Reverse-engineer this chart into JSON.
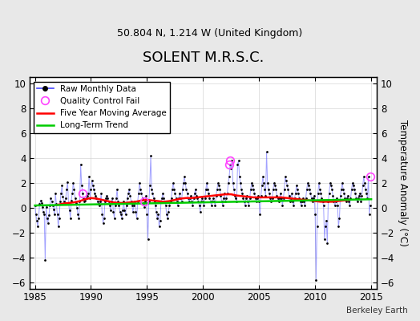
{
  "title": "SOLENT M.R.S.C.",
  "subtitle": "50.804 N, 1.214 W (United Kingdom)",
  "ylabel": "Temperature Anomaly (°C)",
  "attribution": "Berkeley Earth",
  "bg_color": "#e8e8e8",
  "plot_bg_color": "#ffffff",
  "ylim": [
    -6.5,
    10.5
  ],
  "xlim": [
    1984.5,
    2015.5
  ],
  "yticks": [
    -6,
    -4,
    -2,
    0,
    2,
    4,
    6,
    8,
    10
  ],
  "xticks": [
    1985,
    1990,
    1995,
    2000,
    2005,
    2010,
    2015
  ],
  "line_color": "#4444ff",
  "dot_color": "#000000",
  "moving_avg_color": "#ff0000",
  "trend_color": "#00cc00",
  "qc_fail_color": "#ff44ff",
  "line_alpha": 0.5,
  "raw_data": {
    "years": [
      1985,
      1985.083,
      1985.167,
      1985.25,
      1985.333,
      1985.417,
      1985.5,
      1985.583,
      1985.667,
      1985.75,
      1985.833,
      1985.917,
      1986,
      1986.083,
      1986.167,
      1986.25,
      1986.333,
      1986.417,
      1986.5,
      1986.583,
      1986.667,
      1986.75,
      1986.833,
      1986.917,
      1987,
      1987.083,
      1987.167,
      1987.25,
      1987.333,
      1987.417,
      1987.5,
      1987.583,
      1987.667,
      1987.75,
      1987.833,
      1987.917,
      1988,
      1988.083,
      1988.167,
      1988.25,
      1988.333,
      1988.417,
      1988.5,
      1988.583,
      1988.667,
      1988.75,
      1988.833,
      1988.917,
      1989,
      1989.083,
      1989.167,
      1989.25,
      1989.333,
      1989.417,
      1989.5,
      1989.583,
      1989.667,
      1989.75,
      1989.833,
      1989.917,
      1990,
      1990.083,
      1990.167,
      1990.25,
      1990.333,
      1990.417,
      1990.5,
      1990.583,
      1990.667,
      1990.75,
      1990.833,
      1990.917,
      1991,
      1991.083,
      1991.167,
      1991.25,
      1991.333,
      1991.417,
      1991.5,
      1991.583,
      1991.667,
      1991.75,
      1991.833,
      1991.917,
      1992,
      1992.083,
      1992.167,
      1992.25,
      1992.333,
      1992.417,
      1992.5,
      1992.583,
      1992.667,
      1992.75,
      1992.833,
      1992.917,
      1993,
      1993.083,
      1993.167,
      1993.25,
      1993.333,
      1993.417,
      1993.5,
      1993.583,
      1993.667,
      1993.75,
      1993.833,
      1993.917,
      1994,
      1994.083,
      1994.167,
      1994.25,
      1994.333,
      1994.417,
      1994.5,
      1994.583,
      1994.667,
      1994.75,
      1994.833,
      1994.917,
      1995,
      1995.083,
      1995.167,
      1995.25,
      1995.333,
      1995.417,
      1995.5,
      1995.583,
      1995.667,
      1995.75,
      1995.833,
      1995.917,
      1996,
      1996.083,
      1996.167,
      1996.25,
      1996.333,
      1996.417,
      1996.5,
      1996.583,
      1996.667,
      1996.75,
      1996.833,
      1996.917,
      1997,
      1997.083,
      1997.167,
      1997.25,
      1997.333,
      1997.417,
      1997.5,
      1997.583,
      1997.667,
      1997.75,
      1997.833,
      1997.917,
      1998,
      1998.083,
      1998.167,
      1998.25,
      1998.333,
      1998.417,
      1998.5,
      1998.583,
      1998.667,
      1998.75,
      1998.833,
      1998.917,
      1999,
      1999.083,
      1999.167,
      1999.25,
      1999.333,
      1999.417,
      1999.5,
      1999.583,
      1999.667,
      1999.75,
      1999.833,
      1999.917,
      2000,
      2000.083,
      2000.167,
      2000.25,
      2000.333,
      2000.417,
      2000.5,
      2000.583,
      2000.667,
      2000.75,
      2000.833,
      2000.917,
      2001,
      2001.083,
      2001.167,
      2001.25,
      2001.333,
      2001.417,
      2001.5,
      2001.583,
      2001.667,
      2001.75,
      2001.833,
      2001.917,
      2002,
      2002.083,
      2002.167,
      2002.25,
      2002.333,
      2002.417,
      2002.5,
      2002.583,
      2002.667,
      2002.75,
      2002.833,
      2002.917,
      2003,
      2003.083,
      2003.167,
      2003.25,
      2003.333,
      2003.417,
      2003.5,
      2003.583,
      2003.667,
      2003.75,
      2003.833,
      2003.917,
      2004,
      2004.083,
      2004.167,
      2004.25,
      2004.333,
      2004.417,
      2004.5,
      2004.583,
      2004.667,
      2004.75,
      2004.833,
      2004.917,
      2005,
      2005.083,
      2005.167,
      2005.25,
      2005.333,
      2005.417,
      2005.5,
      2005.583,
      2005.667,
      2005.75,
      2005.833,
      2005.917,
      2006,
      2006.083,
      2006.167,
      2006.25,
      2006.333,
      2006.417,
      2006.5,
      2006.583,
      2006.667,
      2006.75,
      2006.833,
      2006.917,
      2007,
      2007.083,
      2007.167,
      2007.25,
      2007.333,
      2007.417,
      2007.5,
      2007.583,
      2007.667,
      2007.75,
      2007.833,
      2007.917,
      2008,
      2008.083,
      2008.167,
      2008.25,
      2008.333,
      2008.417,
      2008.5,
      2008.583,
      2008.667,
      2008.75,
      2008.833,
      2008.917,
      2009,
      2009.083,
      2009.167,
      2009.25,
      2009.333,
      2009.417,
      2009.5,
      2009.583,
      2009.667,
      2009.75,
      2009.833,
      2009.917,
      2010,
      2010.083,
      2010.167,
      2010.25,
      2010.333,
      2010.417,
      2010.5,
      2010.583,
      2010.667,
      2010.75,
      2010.833,
      2010.917,
      2011,
      2011.083,
      2011.167,
      2011.25,
      2011.333,
      2011.417,
      2011.5,
      2011.583,
      2011.667,
      2011.75,
      2011.833,
      2011.917,
      2012,
      2012.083,
      2012.167,
      2012.25,
      2012.333,
      2012.417,
      2012.5,
      2012.583,
      2012.667,
      2012.75,
      2012.833,
      2012.917,
      2013,
      2013.083,
      2013.167,
      2013.25,
      2013.333,
      2013.417,
      2013.5,
      2013.583,
      2013.667,
      2013.75,
      2013.833,
      2013.917,
      2014,
      2014.083,
      2014.167,
      2014.25,
      2014.333,
      2014.417,
      2014.5,
      2014.583,
      2014.667,
      2014.75,
      2014.833,
      2014.917
    ],
    "values": [
      0.2,
      -0.5,
      -1.0,
      -1.5,
      -0.8,
      0.3,
      0.6,
      0.4,
      0.1,
      -0.3,
      -0.5,
      -4.2,
      0.1,
      -0.8,
      -1.2,
      -0.6,
      0.2,
      0.8,
      0.5,
      0.2,
      -0.1,
      -0.5,
      1.2,
      0.3,
      -0.5,
      -1.5,
      -0.8,
      0.5,
      1.2,
      1.8,
      0.9,
      0.5,
      0.3,
      0.8,
      1.5,
      2.1,
      0.4,
      -0.2,
      -0.8,
      0.6,
      1.2,
      2.0,
      1.5,
      0.8,
      0.4,
      0.0,
      -0.5,
      -0.8,
      0.5,
      3.5,
      1.8,
      1.2,
      0.8,
      0.5,
      0.6,
      0.8,
      1.0,
      1.2,
      2.5,
      0.8,
      1.5,
      2.2,
      1.8,
      1.5,
      1.2,
      1.0,
      0.8,
      0.5,
      0.3,
      0.2,
      0.5,
      1.2,
      -0.5,
      -1.2,
      -0.8,
      0.5,
      0.8,
      1.0,
      0.8,
      0.5,
      0.2,
      -0.2,
      0.5,
      0.8,
      -0.3,
      -0.8,
      0.2,
      0.8,
      1.5,
      0.5,
      0.2,
      -0.3,
      -0.5,
      -0.8,
      -0.2,
      0.5,
      -0.2,
      -0.5,
      0.2,
      0.8,
      1.2,
      1.5,
      1.0,
      0.5,
      0.2,
      -0.3,
      0.2,
      0.5,
      -0.3,
      -0.8,
      0.5,
      1.2,
      2.0,
      1.5,
      1.2,
      0.8,
      0.4,
      0.1,
      0.5,
      1.0,
      -0.5,
      -2.5,
      0.5,
      1.8,
      4.2,
      1.5,
      1.2,
      0.8,
      0.5,
      0.2,
      -0.3,
      -0.8,
      -0.5,
      -1.5,
      -1.0,
      0.5,
      0.8,
      1.2,
      0.8,
      0.5,
      0.2,
      -0.5,
      -0.8,
      -0.3,
      0.2,
      0.5,
      0.8,
      1.5,
      2.0,
      1.5,
      1.2,
      0.8,
      0.5,
      0.2,
      0.8,
      1.2,
      0.8,
      0.5,
      1.5,
      2.0,
      2.5,
      2.0,
      1.5,
      1.2,
      0.8,
      0.5,
      0.8,
      1.0,
      0.5,
      0.2,
      0.8,
      1.2,
      1.5,
      1.0,
      0.8,
      0.5,
      0.2,
      -0.3,
      0.5,
      0.8,
      0.5,
      0.2,
      0.8,
      1.5,
      2.0,
      1.5,
      1.2,
      0.8,
      0.5,
      0.2,
      0.5,
      0.8,
      0.5,
      0.2,
      1.0,
      1.5,
      2.0,
      1.8,
      1.5,
      1.0,
      0.5,
      0.2,
      0.8,
      1.2,
      0.5,
      0.8,
      1.2,
      2.0,
      2.5,
      3.5,
      3.2,
      3.8,
      2.0,
      1.5,
      1.0,
      0.8,
      0.5,
      3.5,
      3.8,
      2.5,
      2.0,
      1.5,
      1.2,
      0.8,
      0.5,
      0.2,
      0.8,
      1.0,
      0.5,
      0.2,
      0.8,
      1.5,
      2.0,
      1.8,
      1.5,
      1.2,
      0.8,
      0.5,
      0.8,
      1.0,
      0.5,
      -0.5,
      1.0,
      1.8,
      2.5,
      2.0,
      1.5,
      1.0,
      4.5,
      2.0,
      1.5,
      1.2,
      0.8,
      0.5,
      0.8,
      1.5,
      2.0,
      1.8,
      1.5,
      1.0,
      0.8,
      0.5,
      0.8,
      1.2,
      0.8,
      0.2,
      0.8,
      1.5,
      2.5,
      2.2,
      1.8,
      1.5,
      1.0,
      0.5,
      0.8,
      1.2,
      0.5,
      0.2,
      0.8,
      1.2,
      1.8,
      1.5,
      1.2,
      0.8,
      0.5,
      0.2,
      0.5,
      0.8,
      0.5,
      0.2,
      0.8,
      1.5,
      2.0,
      1.8,
      1.5,
      1.2,
      0.8,
      0.5,
      0.8,
      1.0,
      -0.5,
      -5.8,
      -1.5,
      1.2,
      2.0,
      1.5,
      1.2,
      0.8,
      0.5,
      0.2,
      -2.5,
      -1.5,
      -1.0,
      -2.8,
      0.5,
      1.2,
      2.0,
      1.8,
      1.5,
      1.0,
      0.5,
      0.2,
      0.5,
      0.8,
      0.2,
      -1.5,
      -0.8,
      1.0,
      1.5,
      2.0,
      1.5,
      1.2,
      0.8,
      0.5,
      0.8,
      1.0,
      0.5,
      0.2,
      0.8,
      1.5,
      2.0,
      1.8,
      1.5,
      1.2,
      0.8,
      0.5,
      0.8,
      1.0,
      1.2,
      0.5,
      1.0,
      1.8,
      2.5,
      2.0,
      1.5,
      1.2,
      0.8,
      2.5,
      -0.5,
      0.2
    ]
  },
  "qc_fail_points": [
    {
      "year": 1989.25,
      "value": 1.2
    },
    {
      "year": 1994.75,
      "value": 0.5
    },
    {
      "year": 2002.333,
      "value": 3.5
    },
    {
      "year": 2002.417,
      "value": 3.8
    },
    {
      "year": 2014.917,
      "value": 2.5
    }
  ],
  "moving_avg_years": [
    1987.0,
    1987.5,
    1988.0,
    1988.5,
    1989.0,
    1989.5,
    1990.0,
    1990.5,
    1991.0,
    1991.5,
    1992.0,
    1992.5,
    1993.0,
    1993.5,
    1994.0,
    1994.5,
    1995.0,
    1995.5,
    1996.0,
    1996.5,
    1997.0,
    1997.5,
    1998.0,
    1998.5,
    1999.0,
    1999.5,
    2000.0,
    2000.5,
    2001.0,
    2001.5,
    2002.0,
    2002.5,
    2003.0,
    2003.5,
    2004.0,
    2004.5,
    2005.0,
    2005.5,
    2006.0,
    2006.5,
    2007.0,
    2007.5,
    2008.0,
    2008.5,
    2009.0,
    2009.5,
    2010.0,
    2010.5,
    2011.0,
    2011.5,
    2012.0,
    2012.5,
    2013.0
  ],
  "moving_avg_values": [
    0.25,
    0.35,
    0.4,
    0.45,
    0.55,
    0.7,
    0.8,
    0.75,
    0.65,
    0.55,
    0.45,
    0.4,
    0.4,
    0.45,
    0.5,
    0.6,
    0.65,
    0.6,
    0.55,
    0.5,
    0.55,
    0.65,
    0.75,
    0.8,
    0.8,
    0.85,
    0.9,
    0.95,
    1.0,
    1.05,
    1.1,
    1.1,
    1.0,
    0.95,
    0.9,
    0.85,
    0.85,
    0.85,
    0.85,
    0.85,
    0.85,
    0.8,
    0.75,
    0.7,
    0.65,
    0.6,
    0.55,
    0.5,
    0.5,
    0.5,
    0.55,
    0.6,
    0.65
  ],
  "trend_years": [
    1985,
    2015
  ],
  "trend_values": [
    0.2,
    0.7
  ]
}
